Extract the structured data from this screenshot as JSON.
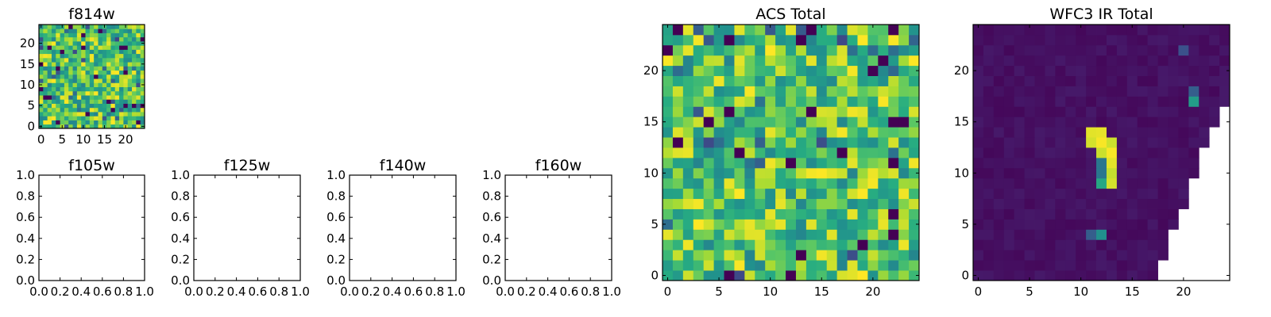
{
  "chart_data": [
    {
      "type": "heatmap",
      "title": "f814w",
      "panel": "f814w",
      "xlim": [
        0,
        25
      ],
      "ylim": [
        0,
        25
      ],
      "xticks": [
        0,
        5,
        10,
        15,
        20
      ],
      "yticks": [
        0,
        5,
        10,
        15,
        20
      ],
      "colormap": "viridis",
      "grid_size": 25,
      "description_values": "random noise pixels, values 0-1"
    },
    {
      "type": "empty",
      "title": "f105w",
      "panel": "f105w",
      "xlim": [
        0,
        1
      ],
      "ylim": [
        0,
        1
      ],
      "xticks": [
        "0.0",
        "0.2",
        "0.4",
        "0.6",
        "0.8",
        "1.0"
      ],
      "yticks": [
        "0.0",
        "0.2",
        "0.4",
        "0.6",
        "0.8",
        "1.0"
      ]
    },
    {
      "type": "empty",
      "title": "f125w",
      "panel": "f125w",
      "xlim": [
        0,
        1
      ],
      "ylim": [
        0,
        1
      ],
      "xticks": [
        "0.0",
        "0.2",
        "0.4",
        "0.6",
        "0.8",
        "1.0"
      ],
      "yticks": [
        "0.0",
        "0.2",
        "0.4",
        "0.6",
        "0.8",
        "1.0"
      ]
    },
    {
      "type": "empty",
      "title": "f140w",
      "panel": "f140w",
      "xlim": [
        0,
        1
      ],
      "ylim": [
        0,
        1
      ],
      "xticks": [
        "0.0",
        "0.2",
        "0.4",
        "0.6",
        "0.8",
        "1.0"
      ],
      "yticks": [
        "0.0",
        "0.2",
        "0.4",
        "0.6",
        "0.8",
        "1.0"
      ]
    },
    {
      "type": "empty",
      "title": "f160w",
      "panel": "f160w",
      "xlim": [
        0,
        1
      ],
      "ylim": [
        0,
        1
      ],
      "xticks": [
        "0.0",
        "0.2",
        "0.4",
        "0.6",
        "0.8",
        "1.0"
      ],
      "yticks": [
        "0.0",
        "0.2",
        "0.4",
        "0.6",
        "0.8",
        "1.0"
      ]
    },
    {
      "type": "heatmap",
      "title": "ACS Total",
      "panel": "acs_total",
      "xlim": [
        0,
        25
      ],
      "ylim": [
        0,
        25
      ],
      "xticks": [
        0,
        5,
        10,
        15,
        20
      ],
      "yticks": [
        0,
        5,
        10,
        15,
        20
      ],
      "colormap": "viridis",
      "grid_size": 25
    },
    {
      "type": "heatmap",
      "title": "WFC3 IR Total",
      "panel": "wfc3_total",
      "xlim": [
        0,
        25
      ],
      "ylim": [
        0,
        25
      ],
      "xticks": [
        0,
        5,
        10,
        15,
        20
      ],
      "yticks": [
        0,
        5,
        10,
        15,
        20
      ],
      "colormap": "viridis",
      "grid_size": 25,
      "bright_source": {
        "x_range": [
          11,
          13
        ],
        "y_range": [
          9,
          14
        ]
      },
      "faint_sources": [
        {
          "x": 20,
          "y": 22,
          "level": 0.25
        },
        {
          "x": 21,
          "y": 17,
          "level": 0.55
        },
        {
          "x": 21,
          "y": 18,
          "level": 0.3
        },
        {
          "x": 12,
          "y": 4,
          "level": 0.5
        },
        {
          "x": 11,
          "y": 4,
          "level": 0.3
        }
      ],
      "blank_edge_right_start_row": {
        "0": 18,
        "1": 18,
        "2": 19,
        "3": 19,
        "4": 19,
        "5": 20,
        "6": 20,
        "7": 21,
        "8": 21,
        "9": 21,
        "10": 22,
        "11": 22,
        "12": 22,
        "13": 23,
        "14": 23,
        "15": 24,
        "16": 24,
        "17": 25,
        "18": 25
      }
    }
  ]
}
